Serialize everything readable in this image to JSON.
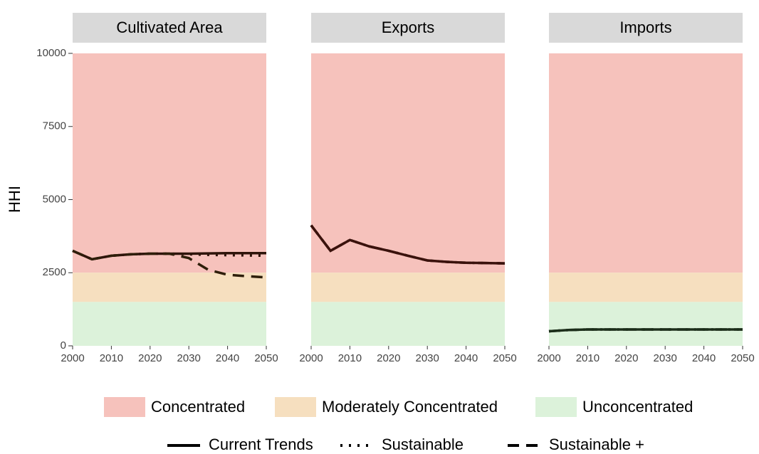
{
  "chart_data": {
    "type": "line",
    "ylabel": "HHI",
    "x": [
      2000,
      2005,
      2010,
      2015,
      2020,
      2025,
      2030,
      2035,
      2040,
      2045,
      2050
    ],
    "xlim": [
      2000,
      2050
    ],
    "xticks": [
      2000,
      2010,
      2020,
      2030,
      2040,
      2050
    ],
    "ylim": [
      0,
      10000
    ],
    "yticks": [
      0,
      2500,
      5000,
      7500,
      10000
    ],
    "bands": [
      {
        "name": "Concentrated",
        "color": "#f6c2bc",
        "range": [
          2500,
          10000
        ]
      },
      {
        "name": "Moderately Concentrated",
        "color": "#f6dfbf",
        "range": [
          1500,
          2500
        ]
      },
      {
        "name": "Unconcentrated",
        "color": "#dcf2da",
        "range": [
          0,
          1500
        ]
      }
    ],
    "facets": [
      {
        "title": "Cultivated Area",
        "series": [
          {
            "name": "Current Trends",
            "color": "#2e140a",
            "linestyle": "solid",
            "values": [
              3250,
              2960,
              3080,
              3130,
              3150,
              3150,
              3150,
              3160,
              3170,
              3170,
              3170
            ]
          },
          {
            "name": "Sustainable",
            "color": "#2e140a",
            "linestyle": "dotted",
            "values": [
              3250,
              2960,
              3080,
              3130,
              3150,
              3150,
              3130,
              3110,
              3100,
              3090,
              3080
            ]
          },
          {
            "name": "Sustainable +",
            "color": "#2e1e0a",
            "linestyle": "dashed",
            "values": [
              3250,
              2960,
              3080,
              3130,
              3150,
              3150,
              3000,
              2600,
              2430,
              2380,
              2340
            ]
          }
        ]
      },
      {
        "title": "Exports",
        "series": [
          {
            "name": "Current Trends",
            "color": "#3a120c",
            "linestyle": "solid",
            "values": [
              4120,
              3250,
              3620,
              3400,
              3250,
              3080,
              2920,
              2870,
              2840,
              2830,
              2820
            ]
          },
          {
            "name": "Sustainable",
            "color": "#3a120c",
            "linestyle": "dotted",
            "values": [
              4120,
              3250,
              3620,
              3400,
              3250,
              3080,
              2920,
              2870,
              2840,
              2830,
              2820
            ]
          },
          {
            "name": "Sustainable +",
            "color": "#3a120c",
            "linestyle": "dashed",
            "values": [
              4120,
              3250,
              3620,
              3400,
              3250,
              3080,
              2920,
              2870,
              2840,
              2830,
              2820
            ]
          }
        ]
      },
      {
        "title": "Imports",
        "series": [
          {
            "name": "Current Trends",
            "color": "#1c2e1a",
            "linestyle": "solid",
            "values": [
              500,
              540,
              560,
              560,
              560,
              560,
              560,
              560,
              560,
              560,
              560
            ]
          },
          {
            "name": "Sustainable",
            "color": "#1c2e1a",
            "linestyle": "dotted",
            "values": [
              500,
              540,
              560,
              560,
              560,
              560,
              560,
              560,
              560,
              560,
              560
            ]
          },
          {
            "name": "Sustainable +",
            "color": "#1c2e1a",
            "linestyle": "dashed",
            "values": [
              500,
              540,
              560,
              560,
              560,
              560,
              560,
              560,
              560,
              560,
              560
            ]
          }
        ]
      }
    ]
  }
}
